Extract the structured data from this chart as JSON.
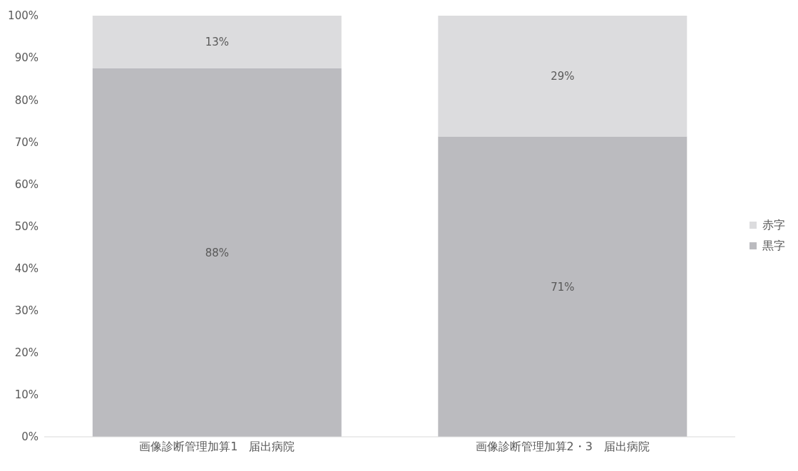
{
  "chart_data": {
    "type": "bar",
    "stacked": true,
    "categories": [
      "画像診断管理加算1　届出病院",
      "画像診断管理加算2・3　届出病院"
    ],
    "series": [
      {
        "name": "黒字",
        "color": "#bbbbbf",
        "values": [
          87.5,
          71.3
        ],
        "value_labels": [
          "88%",
          "71%"
        ]
      },
      {
        "name": "赤字",
        "color": "#dcdcde",
        "values": [
          12.5,
          28.7
        ],
        "value_labels": [
          "13%",
          "29%"
        ]
      }
    ],
    "ylim": [
      0,
      100
    ],
    "yticks": [
      {
        "value": 0,
        "label": "0%"
      },
      {
        "value": 10,
        "label": "10%"
      },
      {
        "value": 20,
        "label": "20%"
      },
      {
        "value": 30,
        "label": "30%"
      },
      {
        "value": 40,
        "label": "40%"
      },
      {
        "value": 50,
        "label": "50%"
      },
      {
        "value": 60,
        "label": "60%"
      },
      {
        "value": 70,
        "label": "70%"
      },
      {
        "value": 80,
        "label": "80%"
      },
      {
        "value": 90,
        "label": "90%"
      },
      {
        "value": 100,
        "label": "100%"
      }
    ],
    "grid": false,
    "legend": "right"
  }
}
